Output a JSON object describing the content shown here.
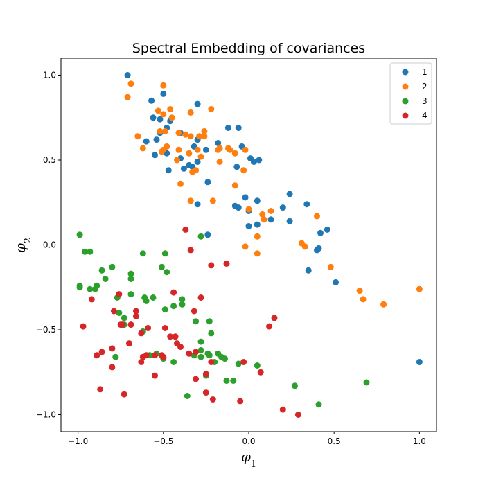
{
  "chart_data": {
    "type": "scatter",
    "title": "Spectral Embedding of covariances",
    "xlabel": "φ",
    "xlabel_sub": "1",
    "ylabel": "φ",
    "ylabel_sub": "2",
    "xlim": [
      -1.1,
      1.1
    ],
    "ylim": [
      -1.1,
      1.1
    ],
    "xticks": [
      -1.0,
      -0.5,
      0.0,
      0.5,
      1.0
    ],
    "yticks": [
      -1.0,
      -0.5,
      0.0,
      0.5,
      1.0
    ],
    "xtick_labels": [
      "−1.0",
      "−0.5",
      "0.0",
      "0.5",
      "1.0"
    ],
    "ytick_labels": [
      "−1.0",
      "−0.5",
      "0.0",
      "0.5",
      "1.0"
    ],
    "grid": false,
    "legend_position": "top-right",
    "series": [
      {
        "name": "1",
        "color": "#1f77b4",
        "points": [
          [
            -0.71,
            1.0
          ],
          [
            -0.57,
            0.85
          ],
          [
            -0.5,
            0.89
          ],
          [
            -0.3,
            0.83
          ],
          [
            -0.56,
            0.75
          ],
          [
            -0.52,
            0.74
          ],
          [
            -0.46,
            0.73
          ],
          [
            -0.48,
            0.69
          ],
          [
            -0.52,
            0.66
          ],
          [
            -0.12,
            0.69
          ],
          [
            -0.06,
            0.69
          ],
          [
            -0.6,
            0.61
          ],
          [
            -0.54,
            0.62
          ],
          [
            -0.48,
            0.54
          ],
          [
            -0.4,
            0.66
          ],
          [
            -0.32,
            0.58
          ],
          [
            -0.3,
            0.62
          ],
          [
            -0.25,
            0.56
          ],
          [
            -0.18,
            0.6
          ],
          [
            -0.17,
            0.57
          ],
          [
            -0.07,
            0.46
          ],
          [
            -0.04,
            0.58
          ],
          [
            0.01,
            0.51
          ],
          [
            0.03,
            0.49
          ],
          [
            0.06,
            0.5
          ],
          [
            -0.55,
            0.53
          ],
          [
            -0.47,
            0.44
          ],
          [
            -0.4,
            0.51
          ],
          [
            -0.38,
            0.45
          ],
          [
            -0.35,
            0.47
          ],
          [
            -0.33,
            0.46
          ],
          [
            -0.3,
            0.49
          ],
          [
            -0.3,
            0.24
          ],
          [
            -0.24,
            0.37
          ],
          [
            -0.24,
            0.06
          ],
          [
            -0.08,
            0.23
          ],
          [
            -0.06,
            0.22
          ],
          [
            -0.02,
            0.28
          ],
          [
            0.0,
            0.2
          ],
          [
            0.0,
            0.11
          ],
          [
            0.05,
            0.12
          ],
          [
            0.05,
            0.26
          ],
          [
            0.13,
            0.15
          ],
          [
            0.2,
            0.22
          ],
          [
            0.24,
            0.3
          ],
          [
            0.24,
            0.14
          ],
          [
            0.34,
            0.24
          ],
          [
            0.35,
            -0.15
          ],
          [
            0.4,
            -0.03
          ],
          [
            0.41,
            -0.02
          ],
          [
            0.42,
            0.07
          ],
          [
            0.46,
            0.09
          ],
          [
            0.51,
            -0.22
          ],
          [
            1.0,
            -0.69
          ]
        ]
      },
      {
        "name": "2",
        "color": "#ff7f0e",
        "points": [
          [
            -0.69,
            0.95
          ],
          [
            -0.71,
            0.87
          ],
          [
            -0.5,
            0.94
          ],
          [
            -0.53,
            0.79
          ],
          [
            -0.5,
            0.77
          ],
          [
            -0.46,
            0.8
          ],
          [
            -0.45,
            0.75
          ],
          [
            -0.34,
            0.78
          ],
          [
            -0.22,
            0.8
          ],
          [
            -0.65,
            0.64
          ],
          [
            -0.62,
            0.57
          ],
          [
            -0.52,
            0.67
          ],
          [
            -0.49,
            0.67
          ],
          [
            -0.41,
            0.66
          ],
          [
            -0.37,
            0.65
          ],
          [
            -0.34,
            0.64
          ],
          [
            -0.29,
            0.64
          ],
          [
            -0.26,
            0.67
          ],
          [
            -0.26,
            0.64
          ],
          [
            -0.51,
            0.55
          ],
          [
            -0.5,
            0.56
          ],
          [
            -0.48,
            0.58
          ],
          [
            -0.41,
            0.56
          ],
          [
            -0.35,
            0.54
          ],
          [
            -0.3,
            0.56
          ],
          [
            -0.18,
            0.56
          ],
          [
            -0.17,
            0.57
          ],
          [
            -0.12,
            0.57
          ],
          [
            -0.11,
            0.56
          ],
          [
            -0.08,
            0.54
          ],
          [
            -0.02,
            0.56
          ],
          [
            -0.42,
            0.5
          ],
          [
            -0.4,
            0.36
          ],
          [
            -0.33,
            0.43
          ],
          [
            -0.31,
            0.44
          ],
          [
            -0.28,
            0.52
          ],
          [
            -0.17,
            0.49
          ],
          [
            -0.03,
            0.44
          ],
          [
            -0.08,
            0.35
          ],
          [
            -0.34,
            0.26
          ],
          [
            -0.21,
            0.26
          ],
          [
            -0.02,
            -0.01
          ],
          [
            0.0,
            0.21
          ],
          [
            0.05,
            0.05
          ],
          [
            0.05,
            -0.05
          ],
          [
            0.08,
            0.18
          ],
          [
            0.09,
            0.15
          ],
          [
            0.13,
            0.2
          ],
          [
            0.31,
            0.01
          ],
          [
            0.33,
            -0.01
          ],
          [
            0.4,
            0.17
          ],
          [
            0.48,
            -0.13
          ],
          [
            0.65,
            -0.27
          ],
          [
            0.67,
            -0.32
          ],
          [
            0.79,
            -0.35
          ],
          [
            1.0,
            -0.26
          ]
        ]
      },
      {
        "name": "3",
        "color": "#2ca02c",
        "points": [
          [
            -0.99,
            0.06
          ],
          [
            -0.96,
            -0.04
          ],
          [
            -0.93,
            -0.04
          ],
          [
            -0.99,
            -0.24
          ],
          [
            -0.99,
            -0.25
          ],
          [
            -0.93,
            -0.26
          ],
          [
            -0.9,
            -0.26
          ],
          [
            -0.89,
            -0.24
          ],
          [
            -0.86,
            -0.15
          ],
          [
            -0.84,
            -0.2
          ],
          [
            -0.8,
            -0.13
          ],
          [
            -0.77,
            -0.31
          ],
          [
            -0.76,
            -0.4
          ],
          [
            -0.73,
            -0.43
          ],
          [
            -0.73,
            -0.47
          ],
          [
            -0.69,
            -0.17
          ],
          [
            -0.69,
            -0.2
          ],
          [
            -0.69,
            -0.29
          ],
          [
            -0.62,
            -0.05
          ],
          [
            -0.61,
            -0.31
          ],
          [
            -0.6,
            -0.33
          ],
          [
            -0.56,
            -0.31
          ],
          [
            -0.51,
            -0.13
          ],
          [
            -0.49,
            -0.05
          ],
          [
            -0.48,
            -0.16
          ],
          [
            -0.49,
            -0.38
          ],
          [
            -0.44,
            -0.36
          ],
          [
            -0.39,
            -0.32
          ],
          [
            -0.39,
            -0.35
          ],
          [
            -0.28,
            0.05
          ],
          [
            -0.31,
            -0.45
          ],
          [
            -0.23,
            -0.45
          ],
          [
            -0.22,
            -0.52
          ],
          [
            -0.28,
            -0.57
          ],
          [
            -0.28,
            -0.62
          ],
          [
            -0.23,
            -0.65
          ],
          [
            -0.18,
            -0.64
          ],
          [
            -0.16,
            -0.66
          ],
          [
            -0.14,
            -0.67
          ],
          [
            -0.13,
            -0.8
          ],
          [
            -0.09,
            -0.8
          ],
          [
            -0.06,
            -0.7
          ],
          [
            -0.62,
            -0.51
          ],
          [
            -0.58,
            -0.65
          ],
          [
            -0.54,
            -0.64
          ],
          [
            -0.5,
            -0.67
          ],
          [
            -0.44,
            -0.69
          ],
          [
            -0.36,
            -0.89
          ],
          [
            -0.32,
            -0.65
          ],
          [
            -0.28,
            -0.66
          ],
          [
            -0.25,
            -0.77
          ],
          [
            -0.24,
            -0.64
          ],
          [
            -0.2,
            -0.69
          ],
          [
            0.05,
            -0.71
          ],
          [
            0.27,
            -0.83
          ],
          [
            0.41,
            -0.94
          ],
          [
            0.69,
            -0.81
          ],
          [
            -0.78,
            -0.66
          ]
        ]
      },
      {
        "name": "4",
        "color": "#d62728",
        "points": [
          [
            -0.37,
            0.09
          ],
          [
            -0.34,
            -0.03
          ],
          [
            -0.13,
            -0.11
          ],
          [
            -0.22,
            -0.12
          ],
          [
            -0.28,
            -0.31
          ],
          [
            -0.32,
            -0.39
          ],
          [
            -0.44,
            -0.28
          ],
          [
            -0.92,
            -0.32
          ],
          [
            -0.76,
            -0.29
          ],
          [
            -0.79,
            -0.39
          ],
          [
            -0.66,
            -0.39
          ],
          [
            -0.66,
            -0.42
          ],
          [
            -0.63,
            -0.52
          ],
          [
            -0.59,
            -0.49
          ],
          [
            -0.49,
            -0.49
          ],
          [
            -0.46,
            -0.54
          ],
          [
            -0.43,
            -0.54
          ],
          [
            -0.42,
            -0.58
          ],
          [
            -0.4,
            -0.6
          ],
          [
            -0.35,
            -0.64
          ],
          [
            -0.31,
            -0.63
          ],
          [
            -0.31,
            -0.79
          ],
          [
            -0.25,
            -0.76
          ],
          [
            -0.25,
            -0.87
          ],
          [
            -0.21,
            -0.91
          ],
          [
            -0.05,
            -0.92
          ],
          [
            -0.03,
            -0.69
          ],
          [
            0.07,
            -0.75
          ],
          [
            0.12,
            -0.48
          ],
          [
            0.15,
            -0.43
          ],
          [
            0.2,
            -0.97
          ],
          [
            0.29,
            -1.0
          ],
          [
            -0.97,
            -0.48
          ],
          [
            -0.89,
            -0.65
          ],
          [
            -0.86,
            -0.63
          ],
          [
            -0.8,
            -0.61
          ],
          [
            -0.8,
            -0.72
          ],
          [
            -0.75,
            -0.47
          ],
          [
            -0.74,
            -0.47
          ],
          [
            -0.69,
            -0.47
          ],
          [
            -0.7,
            -0.58
          ],
          [
            -0.62,
            -0.66
          ],
          [
            -0.63,
            -0.69
          ],
          [
            -0.6,
            -0.65
          ],
          [
            -0.55,
            -0.65
          ],
          [
            -0.55,
            -0.77
          ],
          [
            -0.51,
            -0.65
          ],
          [
            -0.5,
            -0.66
          ],
          [
            -0.87,
            -0.85
          ],
          [
            -0.73,
            -0.88
          ],
          [
            -0.22,
            -0.69
          ]
        ]
      }
    ]
  }
}
